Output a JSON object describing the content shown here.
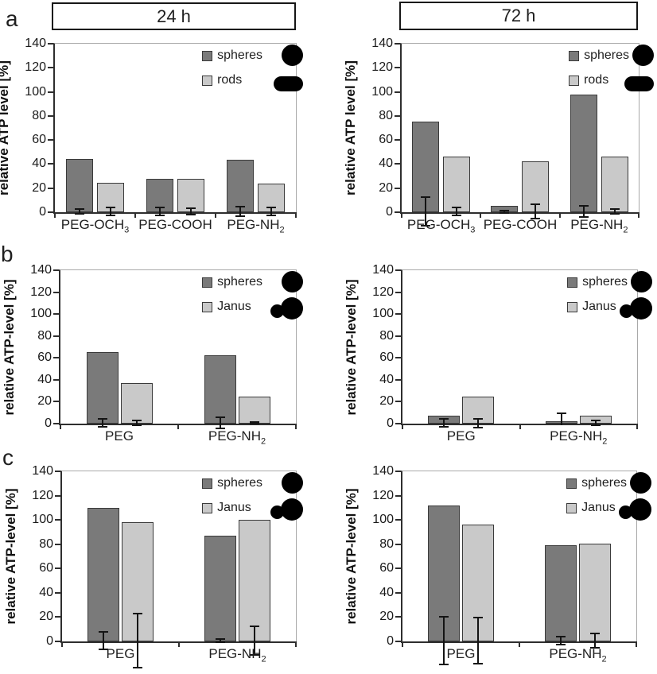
{
  "figure": {
    "panel_labels": [
      "a",
      "b",
      "c"
    ],
    "column_headers": [
      "24 h",
      "72 h"
    ],
    "colors": {
      "bar_dark": "#7a7a7a",
      "bar_light": "#c9c9c9",
      "bar_border": "#3a3a3a",
      "axis": "#2e2e2e",
      "frame": "#a9a9a9",
      "error_bar": "#141414",
      "icon": "#000000",
      "background": "#ffffff"
    }
  },
  "chart_data": [
    {
      "id": "a_24h",
      "panel": "a",
      "column_header": "24 h",
      "type": "bar",
      "title": "",
      "xlabel": "",
      "ylabel": "relative ATP level [%]",
      "ylim": [
        0,
        140
      ],
      "yticks": [
        0,
        20,
        40,
        60,
        80,
        100,
        120,
        140
      ],
      "grid": false,
      "legend_position": "top-right",
      "categories": [
        {
          "label": "PEG-OCH3",
          "parts": [
            {
              "t": "PEG-OCH"
            },
            {
              "t": "3",
              "sub": true
            }
          ]
        },
        {
          "label": "PEG-COOH",
          "parts": [
            {
              "t": "PEG-COOH"
            }
          ]
        },
        {
          "label": "PEG-NH2",
          "parts": [
            {
              "t": "PEG-NH"
            },
            {
              "t": "2",
              "sub": true
            }
          ]
        }
      ],
      "series": [
        {
          "name": "spheres",
          "fill": "dark",
          "icon": "sphere",
          "values": [
            44,
            28,
            43.5
          ],
          "errors": [
            2,
            3,
            4
          ]
        },
        {
          "name": "rods",
          "fill": "light",
          "icon": "rod",
          "values": [
            24.5,
            27.5,
            24
          ],
          "errors": [
            3,
            2.5,
            3
          ]
        }
      ]
    },
    {
      "id": "a_72h",
      "panel": "a",
      "column_header": "72 h",
      "type": "bar",
      "title": "",
      "xlabel": "",
      "ylabel": "relative ATP level [%]",
      "ylim": [
        0,
        140
      ],
      "yticks": [
        0,
        20,
        40,
        60,
        80,
        100,
        120,
        140
      ],
      "grid": false,
      "legend_position": "top-right",
      "categories": [
        {
          "label": "PEG-OCH3",
          "parts": [
            {
              "t": "PEG-OCH"
            },
            {
              "t": "3",
              "sub": true
            }
          ]
        },
        {
          "label": "PEG-COOH",
          "parts": [
            {
              "t": "PEG-COOH"
            }
          ]
        },
        {
          "label": "PEG-NH2",
          "parts": [
            {
              "t": "PEG-NH"
            },
            {
              "t": "2",
              "sub": true
            }
          ]
        }
      ],
      "series": [
        {
          "name": "spheres",
          "fill": "dark",
          "icon": "sphere",
          "values": [
            75,
            5,
            97.5
          ],
          "errors": [
            12,
            1,
            4.5
          ]
        },
        {
          "name": "rods",
          "fill": "light",
          "icon": "rod",
          "values": [
            46,
            42,
            46.5
          ],
          "errors": [
            3.5,
            6,
            2
          ]
        }
      ]
    },
    {
      "id": "b_24h",
      "panel": "b",
      "column_header": "24 h",
      "type": "bar",
      "title": "",
      "xlabel": "",
      "ylabel": "relative ATP-level [%]",
      "ylim": [
        0,
        140
      ],
      "yticks": [
        0,
        20,
        40,
        60,
        80,
        100,
        120,
        140
      ],
      "grid": false,
      "legend_position": "top-right",
      "categories": [
        {
          "label": "PEG",
          "parts": [
            {
              "t": "PEG"
            }
          ]
        },
        {
          "label": "PEG-NH2",
          "parts": [
            {
              "t": "PEG-NH"
            },
            {
              "t": "2",
              "sub": true
            }
          ]
        }
      ],
      "series": [
        {
          "name": "spheres",
          "fill": "dark",
          "icon": "sphere",
          "values": [
            65,
            62.5
          ],
          "errors": [
            3.5,
            5
          ]
        },
        {
          "name": "Janus",
          "fill": "light",
          "icon": "janus",
          "values": [
            37,
            25
          ],
          "errors": [
            2.5,
            1
          ]
        }
      ]
    },
    {
      "id": "b_72h",
      "panel": "b",
      "column_header": "72 h",
      "type": "bar",
      "title": "",
      "xlabel": "",
      "ylabel": "relative ATP-level [%]",
      "ylim": [
        0,
        140
      ],
      "yticks": [
        0,
        20,
        40,
        60,
        80,
        100,
        120,
        140
      ],
      "grid": false,
      "legend_position": "top-right",
      "categories": [
        {
          "label": "PEG",
          "parts": [
            {
              "t": "PEG"
            }
          ]
        },
        {
          "label": "PEG-NH2",
          "parts": [
            {
              "t": "PEG-NH"
            },
            {
              "t": "2",
              "sub": true
            }
          ]
        }
      ],
      "series": [
        {
          "name": "spheres",
          "fill": "dark",
          "icon": "sphere",
          "values": [
            7,
            2
          ],
          "errors": [
            3.5,
            9
          ]
        },
        {
          "name": "Janus",
          "fill": "light",
          "icon": "janus",
          "values": [
            24.5,
            7.5
          ],
          "errors": [
            4,
            2.5
          ]
        }
      ]
    },
    {
      "id": "c_24h",
      "panel": "c",
      "column_header": "24 h",
      "type": "bar",
      "title": "",
      "xlabel": "",
      "ylabel": "relative ATP-level [%]",
      "ylim": [
        0,
        140
      ],
      "yticks": [
        0,
        20,
        40,
        60,
        80,
        100,
        120,
        140
      ],
      "grid": false,
      "legend_position": "top-right",
      "categories": [
        {
          "label": "PEG",
          "parts": [
            {
              "t": "PEG"
            }
          ]
        },
        {
          "label": "PEG-NH2",
          "parts": [
            {
              "t": "PEG-NH"
            },
            {
              "t": "2",
              "sub": true
            }
          ]
        }
      ],
      "series": [
        {
          "name": "spheres",
          "fill": "dark",
          "icon": "sphere",
          "values": [
            110,
            87
          ],
          "errors": [
            7,
            1.5
          ]
        },
        {
          "name": "Janus",
          "fill": "light",
          "icon": "janus",
          "values": [
            98,
            100
          ],
          "errors": [
            22,
            11.5
          ]
        }
      ]
    },
    {
      "id": "c_72h",
      "panel": "c",
      "column_header": "72 h",
      "type": "bar",
      "title": "",
      "xlabel": "",
      "ylabel": "relative ATP-level [%]",
      "ylim": [
        0,
        140
      ],
      "yticks": [
        0,
        20,
        40,
        60,
        80,
        100,
        120,
        140
      ],
      "grid": false,
      "legend_position": "top-right",
      "categories": [
        {
          "label": "PEG",
          "parts": [
            {
              "t": "PEG"
            }
          ]
        },
        {
          "label": "PEG-NH2",
          "parts": [
            {
              "t": "PEG-NH"
            },
            {
              "t": "2",
              "sub": true
            }
          ]
        }
      ],
      "series": [
        {
          "name": "spheres",
          "fill": "dark",
          "icon": "sphere",
          "values": [
            112,
            79
          ],
          "errors": [
            19.5,
            3
          ]
        },
        {
          "name": "Janus",
          "fill": "light",
          "icon": "janus",
          "values": [
            96.5,
            80.5
          ],
          "errors": [
            19,
            6
          ]
        }
      ]
    }
  ]
}
